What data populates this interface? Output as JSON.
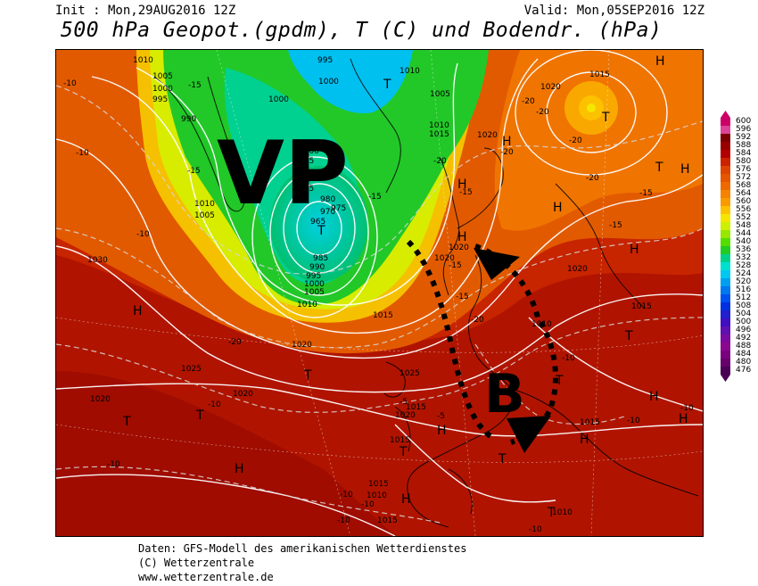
{
  "header": {
    "init": "Init : Mon,29AUG2016 12Z",
    "valid": "Valid: Mon,05SEP2016 12Z",
    "title": "500 hPa Geopot.(gpdm), T (C) und Bodendr. (hPa)"
  },
  "annotations": {
    "low_label": "VP",
    "block_label": "B"
  },
  "legend": {
    "values": [
      "600",
      "596",
      "592",
      "588",
      "584",
      "580",
      "576",
      "572",
      "568",
      "564",
      "560",
      "556",
      "552",
      "548",
      "544",
      "540",
      "536",
      "532",
      "528",
      "524",
      "520",
      "516",
      "512",
      "508",
      "504",
      "500",
      "496",
      "492",
      "488",
      "484",
      "480",
      "476"
    ],
    "colors": [
      "#cc0066",
      "#dd4499",
      "#7a0000",
      "#990000",
      "#b30000",
      "#cc2200",
      "#dd4400",
      "#e65500",
      "#ee6a00",
      "#f58200",
      "#f99a00",
      "#fcc200",
      "#f5e600",
      "#ccf000",
      "#99e600",
      "#55dd00",
      "#22cc22",
      "#00d08a",
      "#00e0d0",
      "#00c8f0",
      "#00a0f0",
      "#0078f0",
      "#0050f0",
      "#0030e0",
      "#2020d0",
      "#4010c0",
      "#6010b0",
      "#7a0aa0",
      "#8a0890",
      "#7a0080",
      "#66006a",
      "#4a0055"
    ]
  },
  "pressure_labels": [
    "1010",
    "1005",
    "1000",
    "995",
    "990",
    "985",
    "980",
    "975",
    "970",
    "965",
    "1015",
    "1020",
    "1025",
    "1030"
  ],
  "temperature_labels": [
    "-10",
    "-15",
    "-20",
    "-5"
  ],
  "pressure_centers": [
    "H",
    "T"
  ],
  "footer": {
    "line1": "Daten: GFS-Modell des amerikanischen Wetterdienstes",
    "line2": "(C) Wetterzentrale",
    "line3": "www.wetterzentrale.de"
  }
}
